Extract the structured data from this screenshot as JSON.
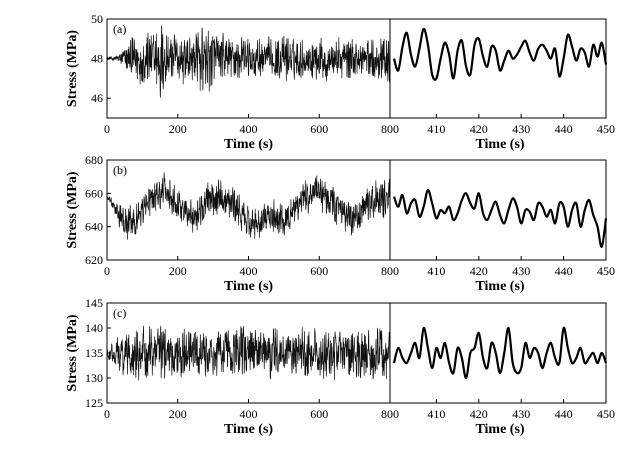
{
  "chart_data": [
    {
      "type": "line",
      "panel_label": "(a)",
      "ylabel": "Stress (MPa)",
      "ylim": [
        45,
        50
      ],
      "yticks": [
        46,
        48,
        50
      ],
      "left": {
        "xlabel": "Time (s)",
        "xlim": [
          0,
          800
        ],
        "xticks": [
          0,
          200,
          400,
          600,
          800
        ],
        "series": {
          "baseline": 48,
          "x": [
            0,
            20,
            40,
            60,
            80,
            100,
            120,
            140,
            150,
            160,
            180,
            200,
            220,
            240,
            260,
            280,
            300,
            320,
            340,
            360,
            380,
            400,
            420,
            440,
            460,
            480,
            500,
            520,
            540,
            560,
            580,
            600,
            620,
            640,
            660,
            680,
            700,
            720,
            740,
            760,
            780,
            800
          ],
          "amplitude": [
            0.1,
            0.1,
            0.3,
            0.8,
            1.1,
            1.2,
            1.3,
            1.5,
            2.2,
            1.6,
            1.3,
            1.2,
            1.3,
            1.2,
            1.4,
            1.8,
            1.3,
            1.1,
            1.1,
            1.0,
            1.0,
            1.0,
            1.0,
            0.9,
            0.9,
            0.9,
            1.0,
            1.0,
            0.9,
            0.9,
            0.9,
            1.0,
            1.0,
            0.9,
            0.9,
            0.9,
            0.9,
            0.9,
            0.9,
            1.0,
            1.1,
            1.1
          ]
        }
      },
      "right": {
        "xlabel": "Time (s)",
        "xlim": [
          400,
          450
        ],
        "xticks": [
          410,
          420,
          430,
          440,
          450
        ],
        "series": {
          "x": [
            400,
            401,
            402,
            403,
            404,
            405,
            406,
            407,
            408,
            409,
            410,
            411,
            412,
            413,
            414,
            415,
            416,
            417,
            418,
            419,
            420,
            421,
            422,
            423,
            424,
            425,
            426,
            427,
            428,
            429,
            430,
            431,
            432,
            433,
            434,
            435,
            436,
            437,
            438,
            439,
            440,
            441,
            442,
            443,
            444,
            445,
            446,
            447,
            448,
            449,
            450
          ],
          "y": [
            48.0,
            47.4,
            48.6,
            49.3,
            48.2,
            47.6,
            48.5,
            49.5,
            48.7,
            47.2,
            47.0,
            48.0,
            48.8,
            48.2,
            47.0,
            48.4,
            48.9,
            47.6,
            47.2,
            48.7,
            49.0,
            48.1,
            47.6,
            48.6,
            48.4,
            47.4,
            47.9,
            48.4,
            48.0,
            48.2,
            48.6,
            48.9,
            48.3,
            47.9,
            48.5,
            48.7,
            48.4,
            48.0,
            48.5,
            47.1,
            48.0,
            49.2,
            48.6,
            47.9,
            48.5,
            48.3,
            47.6,
            48.7,
            48.1,
            48.8,
            47.7
          ]
        }
      }
    },
    {
      "type": "line",
      "panel_label": "(b)",
      "ylabel": "Stress (MPa)",
      "ylim": [
        620,
        680
      ],
      "yticks": [
        620,
        640,
        660,
        680
      ],
      "left": {
        "xlabel": "Time (s)",
        "xlim": [
          0,
          800
        ],
        "xticks": [
          0,
          200,
          400,
          600,
          800
        ],
        "series": {
          "x": [
            0,
            20,
            40,
            60,
            80,
            100,
            120,
            140,
            160,
            180,
            200,
            220,
            240,
            260,
            280,
            300,
            320,
            340,
            360,
            380,
            400,
            420,
            440,
            460,
            480,
            500,
            520,
            540,
            560,
            580,
            600,
            620,
            640,
            660,
            680,
            700,
            720,
            740,
            760,
            780,
            800
          ],
          "trend": [
            658,
            652,
            645,
            641,
            644,
            650,
            655,
            659,
            661,
            659,
            655,
            649,
            646,
            649,
            654,
            658,
            659,
            657,
            653,
            647,
            642,
            641,
            643,
            646,
            645,
            644,
            648,
            653,
            657,
            660,
            660,
            658,
            654,
            648,
            645,
            645,
            648,
            653,
            656,
            657,
            657
          ],
          "amplitude": [
            1.5,
            3,
            8,
            9,
            9,
            9,
            9,
            9,
            10,
            9,
            9,
            9,
            9,
            9,
            10,
            10,
            9,
            9,
            9,
            9,
            9,
            9,
            9,
            9,
            9,
            9,
            9,
            10,
            10,
            10,
            10,
            9,
            9,
            9,
            9,
            9,
            9,
            10,
            10,
            10,
            10
          ]
        }
      },
      "right": {
        "xlabel": "Time (s)",
        "xlim": [
          400,
          450
        ],
        "xticks": [
          410,
          420,
          430,
          440,
          450
        ],
        "series": {
          "x": [
            400,
            401,
            402,
            403,
            404,
            405,
            406,
            407,
            408,
            409,
            410,
            411,
            412,
            413,
            414,
            415,
            416,
            417,
            418,
            419,
            420,
            421,
            422,
            423,
            424,
            425,
            426,
            427,
            428,
            429,
            430,
            431,
            432,
            433,
            434,
            435,
            436,
            437,
            438,
            439,
            440,
            441,
            442,
            443,
            444,
            445,
            446,
            447,
            448,
            449,
            450
          ],
          "y": [
            658,
            652,
            659,
            648,
            654,
            656,
            646,
            652,
            662,
            654,
            645,
            650,
            648,
            652,
            644,
            648,
            656,
            660,
            654,
            651,
            660,
            648,
            644,
            650,
            655,
            647,
            642,
            650,
            657,
            652,
            642,
            650,
            649,
            644,
            654,
            652,
            646,
            650,
            642,
            654,
            652,
            640,
            650,
            654,
            640,
            650,
            656,
            647,
            640,
            628,
            645
          ]
        }
      }
    },
    {
      "type": "line",
      "panel_label": "(c)",
      "ylabel": "Stress (MPa)",
      "ylim": [
        125,
        145
      ],
      "yticks": [
        125,
        130,
        135,
        140,
        145
      ],
      "left": {
        "xlabel": "Time (s)",
        "xlim": [
          0,
          800
        ],
        "xticks": [
          0,
          200,
          400,
          600,
          800
        ],
        "series": {
          "baseline": 135,
          "x": [
            0,
            20,
            40,
            60,
            80,
            100,
            120,
            140,
            160,
            180,
            200,
            220,
            240,
            260,
            280,
            300,
            320,
            340,
            360,
            380,
            400,
            420,
            440,
            460,
            480,
            500,
            520,
            540,
            560,
            580,
            600,
            620,
            640,
            660,
            680,
            700,
            720,
            740,
            760,
            780,
            800
          ],
          "amplitude": [
            1,
            2,
            4,
            4.5,
            4.5,
            4.5,
            5,
            5,
            4.5,
            4.5,
            4.5,
            4.5,
            4.5,
            4.5,
            4.5,
            4.5,
            4.5,
            4.5,
            4.5,
            4.5,
            4.5,
            4.5,
            4.5,
            4.5,
            4.5,
            4.5,
            4.5,
            4.5,
            4.5,
            4.5,
            4.5,
            4.5,
            4.5,
            4.5,
            4.5,
            4.5,
            4.5,
            4.5,
            5,
            5,
            4.5
          ]
        }
      },
      "right": {
        "xlabel": "Time (s)",
        "xlim": [
          400,
          450
        ],
        "xticks": [
          410,
          420,
          430,
          440,
          450
        ],
        "series": {
          "x": [
            400,
            401,
            402,
            403,
            404,
            405,
            406,
            407,
            408,
            409,
            410,
            411,
            412,
            413,
            414,
            415,
            416,
            417,
            418,
            419,
            420,
            421,
            422,
            423,
            424,
            425,
            426,
            427,
            428,
            429,
            430,
            431,
            432,
            433,
            434,
            435,
            436,
            437,
            438,
            439,
            440,
            441,
            442,
            443,
            444,
            445,
            446,
            447,
            448,
            449,
            450
          ],
          "y": [
            133,
            136,
            134,
            133,
            135,
            137,
            134,
            140,
            136,
            132,
            136,
            134,
            137,
            133,
            131,
            136,
            134,
            130,
            135,
            136,
            139,
            134,
            132,
            137,
            135,
            131,
            135,
            140,
            133,
            131,
            132,
            137,
            134,
            136,
            135,
            132,
            135,
            137,
            134,
            133,
            140,
            136,
            133,
            134,
            136,
            133,
            134,
            135,
            133,
            135,
            133
          ]
        }
      }
    }
  ]
}
